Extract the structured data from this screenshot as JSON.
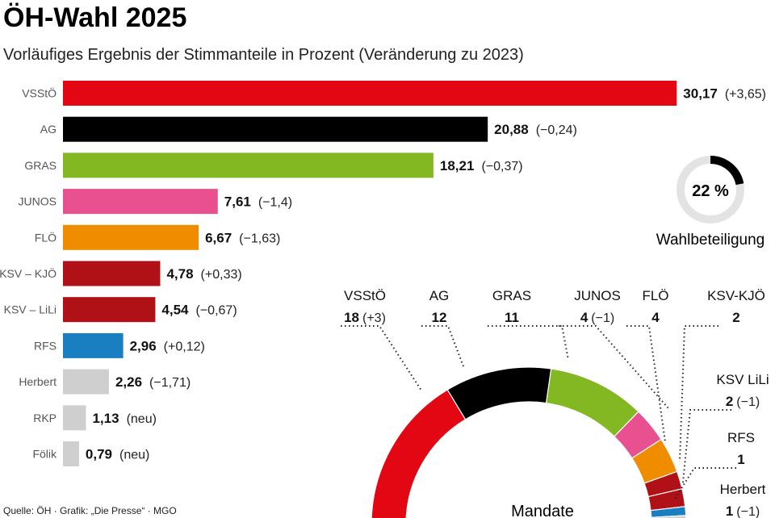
{
  "title": "ÖH-Wahl 2025",
  "subtitle": "Vorläufiges Ergebnis der Stimmanteile in Prozent (Veränderung zu 2023)",
  "source": "Quelle: ÖH · Grafik: „Die Presse“ · MGO",
  "chart_data": [
    {
      "type": "bar",
      "orientation": "horizontal",
      "categories": [
        "VSStÖ",
        "AG",
        "GRAS",
        "JUNOS",
        "FLÖ",
        "KSV – KJÖ",
        "KSV – LiLi",
        "RFS",
        "Herbert",
        "RKP",
        "Fölik"
      ],
      "values": [
        30.17,
        20.88,
        18.21,
        7.61,
        6.67,
        4.78,
        4.54,
        2.96,
        2.26,
        1.13,
        0.79
      ],
      "value_labels": [
        "30,17",
        "20,88",
        "18,21",
        "7,61",
        "6,67",
        "4,78",
        "4,54",
        "2,96",
        "2,26",
        "1,13",
        "0,79"
      ],
      "change_labels": [
        "(+3,65)",
        "(−0,24)",
        "(−0,37)",
        "(−1,4)",
        "(−1,63)",
        "(+0,33)",
        "(−0,67)",
        "(+0,12)",
        "(−1,71)",
        "(neu)",
        "(neu)"
      ],
      "colors": [
        "#e30613",
        "#000000",
        "#84b823",
        "#e8508f",
        "#f08c00",
        "#b01116",
        "#b01116",
        "#1a7fc1",
        "#cfcfcf",
        "#cfcfcf",
        "#cfcfcf"
      ]
    },
    {
      "type": "pie",
      "variant": "donut",
      "value": 22,
      "label": "22 %",
      "caption": "Wahlbeteiligung",
      "colors": {
        "fill": "#000000",
        "track": "#e3e3e3"
      }
    },
    {
      "type": "pie",
      "variant": "semicircle",
      "title": "Mandate",
      "categories": [
        "VSStÖ",
        "AG",
        "GRAS",
        "JUNOS",
        "FLÖ",
        "KSV-KJÖ",
        "KSV LiLi",
        "RFS",
        "Herbert"
      ],
      "values": [
        18,
        12,
        11,
        4,
        4,
        2,
        2,
        1,
        1
      ],
      "change_labels": [
        "(+3)",
        "",
        "",
        "(−1)",
        "",
        "",
        "(−1)",
        "",
        "(−1)"
      ],
      "colors": [
        "#e30613",
        "#000000",
        "#84b823",
        "#e8508f",
        "#f08c00",
        "#b01116",
        "#b01116",
        "#1a7fc1",
        "#cfcfcf"
      ]
    }
  ]
}
